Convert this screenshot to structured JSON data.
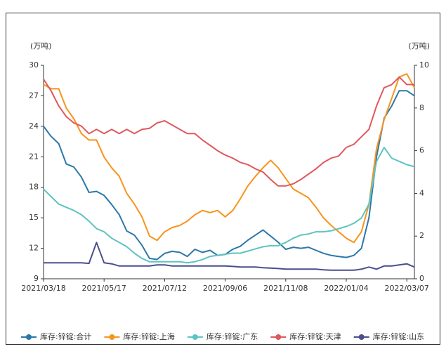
{
  "chart_data": {
    "type": "line",
    "y_label": "(万吨)",
    "y2_label": "(万吨)",
    "categories": [
      "2021/03/18",
      null,
      null,
      null,
      null,
      null,
      null,
      null,
      "2021/05/17",
      null,
      null,
      null,
      null,
      null,
      null,
      null,
      "2021/07/12",
      null,
      null,
      null,
      null,
      null,
      null,
      null,
      "2021/09/06",
      null,
      null,
      null,
      null,
      null,
      null,
      null,
      "2021/11/08",
      null,
      null,
      null,
      null,
      null,
      null,
      null,
      "2022/01/04",
      null,
      null,
      null,
      null,
      null,
      null,
      null,
      "2022/03/07",
      null
    ],
    "ylim": [
      9,
      30
    ],
    "yticks": [
      9,
      12,
      15,
      18,
      21,
      24,
      27,
      30
    ],
    "y2lim": [
      0,
      10
    ],
    "y2ticks": [
      0,
      2,
      4,
      6,
      8,
      10
    ],
    "legend": "bottom",
    "series": [
      {
        "name": "库存:锌锭:合计",
        "color": "#2c78a8",
        "values": [
          24,
          23,
          22.3,
          20.3,
          20,
          19,
          17.5,
          17.6,
          17.2,
          16.3,
          15.3,
          13.7,
          13.3,
          12.3,
          11.0,
          10.9,
          11.5,
          11.7,
          11.6,
          11.2,
          11.9,
          11.6,
          11.8,
          11.3,
          11.4,
          11.9,
          12.2,
          12.8,
          13.3,
          13.8,
          13.2,
          12.6,
          11.9,
          12.1,
          12.0,
          12.1,
          11.8,
          11.5,
          11.3,
          11.2,
          11.1,
          11.3,
          12.0,
          15.0,
          21.0,
          24.8,
          26.0,
          27.5,
          27.5,
          27.0
        ]
      },
      {
        "name": "库存:锌锭:上海",
        "color": "#f7941d",
        "axis": "y2",
        "values": [
          9.1,
          8.9,
          8.9,
          8.0,
          7.5,
          6.8,
          6.5,
          6.5,
          5.7,
          5.2,
          4.8,
          4.0,
          3.5,
          2.9,
          2.0,
          1.8,
          2.2,
          2.4,
          2.5,
          2.7,
          3.0,
          3.2,
          3.1,
          3.2,
          2.9,
          3.2,
          3.75,
          4.35,
          4.8,
          5.2,
          5.55,
          5.2,
          4.7,
          4.2,
          4.0,
          3.8,
          3.35,
          2.85,
          2.5,
          2.2,
          1.9,
          1.7,
          2.2,
          3.5,
          6.1,
          7.45,
          8.45,
          9.45,
          9.6,
          8.95
        ]
      },
      {
        "name": "库存:锌锭:广东",
        "color": "#5ec4c0",
        "axis": "y2",
        "values": [
          4.2,
          3.85,
          3.5,
          3.35,
          3.2,
          3.0,
          2.7,
          2.35,
          2.2,
          1.9,
          1.7,
          1.5,
          1.2,
          0.95,
          0.8,
          0.8,
          0.8,
          0.8,
          0.8,
          0.75,
          0.8,
          0.9,
          1.05,
          1.1,
          1.15,
          1.2,
          1.2,
          1.3,
          1.4,
          1.5,
          1.55,
          1.55,
          1.7,
          1.9,
          2.05,
          2.1,
          2.2,
          2.2,
          2.25,
          2.35,
          2.45,
          2.6,
          2.85,
          3.5,
          5.5,
          6.15,
          5.65,
          5.5,
          5.35,
          5.25
        ]
      },
      {
        "name": "库存:锌锭:天津",
        "color": "#e0585e",
        "axis": "y2",
        "values": [
          9.35,
          8.8,
          8.1,
          7.6,
          7.3,
          7.15,
          6.8,
          7.0,
          6.8,
          7.0,
          6.8,
          7.0,
          6.8,
          7.0,
          7.05,
          7.3,
          7.4,
          7.2,
          7.0,
          6.8,
          6.8,
          6.5,
          6.25,
          6.0,
          5.8,
          5.65,
          5.45,
          5.35,
          5.15,
          5.0,
          4.65,
          4.35,
          4.35,
          4.45,
          4.65,
          4.9,
          5.15,
          5.45,
          5.65,
          5.75,
          6.15,
          6.3,
          6.65,
          7.0,
          8.1,
          8.95,
          9.1,
          9.45,
          9.1,
          9.1
        ]
      },
      {
        "name": "库存:锌锭:山东",
        "color": "#4a4f8c",
        "axis": "y2",
        "values": [
          0.75,
          0.75,
          0.75,
          0.75,
          0.75,
          0.75,
          0.72,
          1.7,
          0.75,
          0.7,
          0.6,
          0.6,
          0.6,
          0.6,
          0.6,
          0.65,
          0.65,
          0.6,
          0.6,
          0.6,
          0.6,
          0.6,
          0.6,
          0.6,
          0.6,
          0.58,
          0.55,
          0.55,
          0.55,
          0.52,
          0.5,
          0.48,
          0.45,
          0.45,
          0.45,
          0.45,
          0.45,
          0.42,
          0.4,
          0.4,
          0.4,
          0.4,
          0.45,
          0.55,
          0.45,
          0.6,
          0.6,
          0.65,
          0.7,
          0.55
        ]
      }
    ]
  }
}
